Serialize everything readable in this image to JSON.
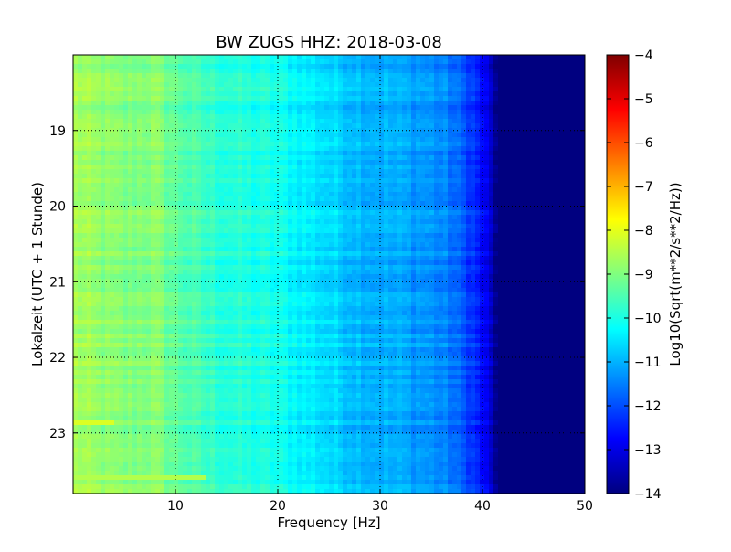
{
  "chart_data": {
    "type": "heatmap",
    "title": "BW ZUGS HHZ: 2018-03-08",
    "xlabel": "Frequency [Hz]",
    "ylabel": "Lokalzeit (UTC + 1 Stunde)",
    "xlim": [
      0,
      50
    ],
    "ylim": [
      18.0,
      23.8
    ],
    "y_inverted": true,
    "grid": true,
    "x_ticks": [
      10,
      20,
      30,
      40,
      50
    ],
    "x_tick_labels": [
      "10",
      "20",
      "30",
      "40",
      "50"
    ],
    "y_ticks": [
      19,
      20,
      21,
      22,
      23
    ],
    "y_tick_labels": [
      "19",
      "20",
      "21",
      "22",
      "23"
    ],
    "colormap": "jet",
    "colorbar": {
      "label": "Log10(Sqrt(m**2/s**2/Hz))",
      "range": [
        -14,
        -4
      ],
      "ticks": [
        -4,
        -5,
        -6,
        -7,
        -8,
        -9,
        -10,
        -11,
        -12,
        -13,
        -14
      ],
      "tick_labels": [
        "−4",
        "−5",
        "−6",
        "−7",
        "−8",
        "−9",
        "−10",
        "−11",
        "−12",
        "−13",
        "−14"
      ]
    },
    "frequency_profile": {
      "frequency_hz": [
        0,
        2,
        5,
        8,
        10,
        13,
        16,
        20,
        24,
        28,
        32,
        35,
        37,
        39,
        40.5,
        41.5,
        50
      ],
      "level": [
        -8.6,
        -8.8,
        -9.0,
        -8.9,
        -9.3,
        -9.7,
        -9.9,
        -10.1,
        -10.5,
        -10.9,
        -11.1,
        -11.3,
        -11.6,
        -12.2,
        -13.0,
        -14.0,
        -14.0
      ]
    },
    "features": [
      {
        "frequency_range_hz": [
          0,
          4
        ],
        "time": 22.85,
        "level": -8.1
      },
      {
        "frequency_range_hz": [
          0,
          13
        ],
        "time": 23.58,
        "level": -8.5
      }
    ]
  }
}
